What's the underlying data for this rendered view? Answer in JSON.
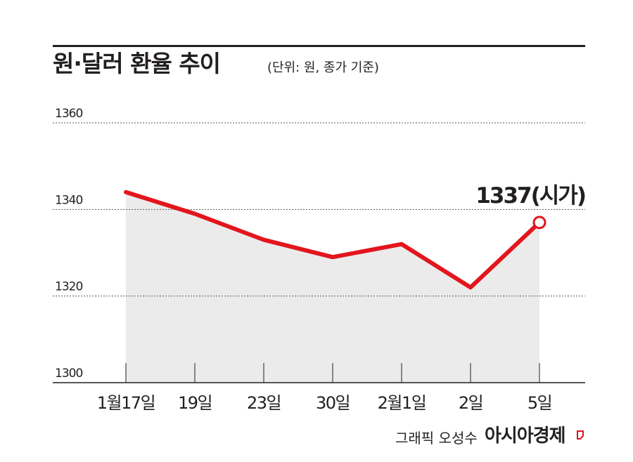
{
  "header": {
    "title": "원·달러 환율 추이",
    "unit_note": "(단위: 원, 종가 기준)"
  },
  "footer": {
    "credit": "그래픽 오성수",
    "brand": "아시아경제"
  },
  "colors": {
    "line": "#e3151d",
    "area": "#ebebeb",
    "text": "#231f20",
    "grid": "#555555"
  },
  "chart_data": {
    "type": "area",
    "categories": [
      "1월17일",
      "19일",
      "23일",
      "30일",
      "2월1일",
      "2일",
      "5일"
    ],
    "values": [
      1344,
      1339,
      1333,
      1329,
      1332,
      1322,
      1337
    ],
    "ylim": [
      1300,
      1360
    ],
    "yticks": [
      1300,
      1320,
      1340,
      1360
    ],
    "grid": true,
    "annotation": {
      "text": "1337(시가)",
      "index": 6
    }
  }
}
